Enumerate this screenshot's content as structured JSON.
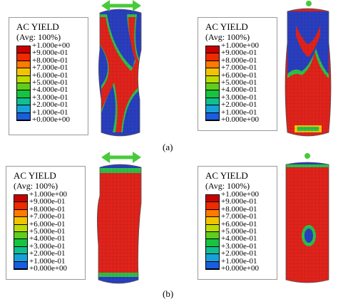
{
  "legend": {
    "title": "AC YIELD",
    "subtitle": "(Avg: 100%)",
    "levels": [
      {
        "label": "+1.000e+00",
        "color": "#c80000"
      },
      {
        "label": "+9.000e-01",
        "color": "#ee2a00"
      },
      {
        "label": "+8.000e-01",
        "color": "#ff7a00"
      },
      {
        "label": "+7.000e-01",
        "color": "#f2c400"
      },
      {
        "label": "+6.000e-01",
        "color": "#bcdc00"
      },
      {
        "label": "+5.000e-01",
        "color": "#5fcc1e"
      },
      {
        "label": "+4.000e-01",
        "color": "#17c340"
      },
      {
        "label": "+3.000e-01",
        "color": "#0fbf8f"
      },
      {
        "label": "+2.000e-01",
        "color": "#1aa0d8"
      },
      {
        "label": "+1.000e-01",
        "color": "#1a5ee0"
      },
      {
        "label": "+0.000e+00",
        "color": "#1a1ab4"
      }
    ]
  },
  "captions": {
    "a": "(a)",
    "b": "(b)"
  },
  "colors": {
    "plastic": "#e0231b",
    "elastic": "#2a3fbf",
    "transition": "#2fbf4a",
    "arrow": "#49c93c",
    "marker": "#49c93c"
  }
}
